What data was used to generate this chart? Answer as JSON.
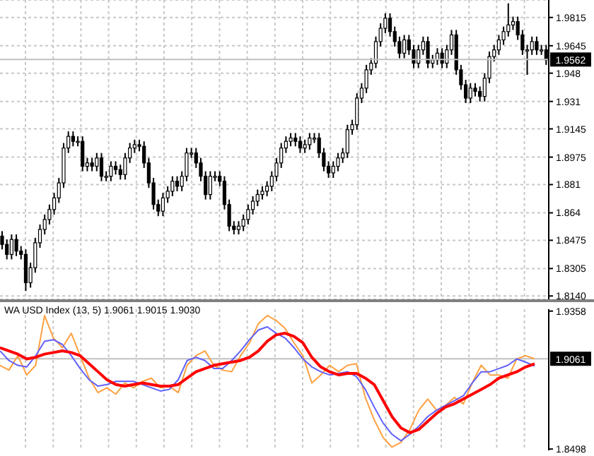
{
  "chart_data": [
    {
      "type": "candlestick",
      "color": "#000000",
      "categories": [
        null,
        null,
        null,
        null,
        null,
        null,
        null,
        null,
        null,
        null,
        null,
        null,
        null,
        null,
        null,
        null,
        null,
        null,
        null,
        null,
        null,
        null,
        null,
        null,
        null,
        null,
        null,
        null,
        null,
        null,
        null,
        null,
        null,
        null,
        null,
        null,
        null,
        null,
        null,
        null,
        null,
        null,
        null,
        null,
        null,
        null,
        null,
        null,
        null,
        null,
        null,
        null,
        null,
        null,
        null,
        null,
        null,
        null,
        null,
        null,
        null,
        null,
        null,
        null,
        null,
        null,
        null,
        null,
        null,
        null,
        null,
        null,
        null,
        null,
        null,
        null,
        null,
        null,
        null,
        null,
        null,
        null,
        null,
        null,
        null,
        null,
        null,
        null,
        null,
        null,
        null,
        null,
        null,
        null,
        null,
        null,
        null,
        null,
        null,
        null,
        null,
        null,
        null,
        null,
        null,
        null,
        null,
        null,
        null,
        null,
        null,
        null,
        null,
        null,
        null,
        null
      ],
      "ohlc": [
        [
          1.85,
          1.853,
          1.842,
          1.845
        ],
        [
          1.845,
          1.848,
          1.836,
          1.839
        ],
        [
          1.839,
          1.851,
          1.836,
          1.848
        ],
        [
          1.848,
          1.851,
          1.838,
          1.841
        ],
        [
          1.841,
          1.844,
          1.836,
          1.839
        ],
        [
          1.839,
          1.842,
          1.817,
          1.822
        ],
        [
          1.822,
          1.834,
          1.819,
          1.831
        ],
        [
          1.831,
          1.849,
          1.828,
          1.846
        ],
        [
          1.846,
          1.857,
          1.843,
          1.854
        ],
        [
          1.854,
          1.863,
          1.851,
          1.86
        ],
        [
          1.86,
          1.869,
          1.857,
          1.866
        ],
        [
          1.866,
          1.876,
          1.863,
          1.873
        ],
        [
          1.873,
          1.885,
          1.87,
          1.882
        ],
        [
          1.882,
          1.906,
          1.879,
          1.903
        ],
        [
          1.903,
          1.913,
          1.9,
          1.91
        ],
        [
          1.91,
          1.913,
          1.904,
          1.907
        ],
        [
          1.907,
          1.91,
          1.904,
          1.907
        ],
        [
          1.907,
          1.91,
          1.889,
          1.892
        ],
        [
          1.892,
          1.897,
          1.889,
          1.894
        ],
        [
          1.894,
          1.897,
          1.889,
          1.892
        ],
        [
          1.892,
          1.9,
          1.889,
          1.897
        ],
        [
          1.897,
          1.9,
          1.883,
          1.886
        ],
        [
          1.886,
          1.889,
          1.883,
          1.886
        ],
        [
          1.886,
          1.895,
          1.883,
          1.892
        ],
        [
          1.892,
          1.895,
          1.887,
          1.89
        ],
        [
          1.89,
          1.893,
          1.884,
          1.887
        ],
        [
          1.887,
          1.9,
          1.884,
          1.897
        ],
        [
          1.897,
          1.906,
          1.894,
          1.903
        ],
        [
          1.903,
          1.908,
          1.9,
          1.905
        ],
        [
          1.905,
          1.908,
          1.901,
          1.904
        ],
        [
          1.904,
          1.907,
          1.891,
          1.894
        ],
        [
          1.894,
          1.897,
          1.879,
          1.882
        ],
        [
          1.882,
          1.885,
          1.866,
          1.869
        ],
        [
          1.869,
          1.872,
          1.862,
          1.865
        ],
        [
          1.865,
          1.876,
          1.862,
          1.873
        ],
        [
          1.873,
          1.88,
          1.87,
          1.877
        ],
        [
          1.877,
          1.886,
          1.874,
          1.883
        ],
        [
          1.883,
          1.886,
          1.877,
          1.88
        ],
        [
          1.88,
          1.889,
          1.877,
          1.886
        ],
        [
          1.886,
          1.903,
          1.883,
          1.9
        ],
        [
          1.9,
          1.903,
          1.897,
          1.9
        ],
        [
          1.9,
          1.903,
          1.891,
          1.894
        ],
        [
          1.894,
          1.897,
          1.883,
          1.886
        ],
        [
          1.886,
          1.889,
          1.872,
          1.875
        ],
        [
          1.875,
          1.889,
          1.872,
          1.886
        ],
        [
          1.886,
          1.889,
          1.883,
          1.886
        ],
        [
          1.886,
          1.889,
          1.88,
          1.883
        ],
        [
          1.883,
          1.886,
          1.866,
          1.869
        ],
        [
          1.869,
          1.872,
          1.853,
          1.856
        ],
        [
          1.856,
          1.859,
          1.851,
          1.854
        ],
        [
          1.854,
          1.859,
          1.851,
          1.856
        ],
        [
          1.856,
          1.863,
          1.853,
          1.86
        ],
        [
          1.86,
          1.869,
          1.857,
          1.866
        ],
        [
          1.866,
          1.874,
          1.863,
          1.871
        ],
        [
          1.871,
          1.878,
          1.868,
          1.875
        ],
        [
          1.875,
          1.88,
          1.872,
          1.877
        ],
        [
          1.877,
          1.883,
          1.874,
          1.88
        ],
        [
          1.88,
          1.889,
          1.877,
          1.886
        ],
        [
          1.886,
          1.897,
          1.883,
          1.894
        ],
        [
          1.894,
          1.906,
          1.891,
          1.903
        ],
        [
          1.903,
          1.91,
          1.9,
          1.907
        ],
        [
          1.907,
          1.912,
          1.904,
          1.909
        ],
        [
          1.909,
          1.912,
          1.904,
          1.907
        ],
        [
          1.907,
          1.91,
          1.9,
          1.903
        ],
        [
          1.903,
          1.908,
          1.9,
          1.905
        ],
        [
          1.905,
          1.912,
          1.902,
          1.909
        ],
        [
          1.909,
          1.912,
          1.906,
          1.909
        ],
        [
          1.909,
          1.912,
          1.897,
          1.9
        ],
        [
          1.9,
          1.903,
          1.889,
          1.892
        ],
        [
          1.892,
          1.895,
          1.885,
          1.888
        ],
        [
          1.888,
          1.895,
          1.885,
          1.892
        ],
        [
          1.892,
          1.9,
          1.889,
          1.897
        ],
        [
          1.897,
          1.903,
          1.894,
          1.9
        ],
        [
          1.9,
          1.917,
          1.897,
          1.914
        ],
        [
          1.914,
          1.92,
          1.911,
          1.917
        ],
        [
          1.917,
          1.936,
          1.914,
          1.933
        ],
        [
          1.933,
          1.942,
          1.93,
          1.939
        ],
        [
          1.939,
          1.953,
          1.936,
          1.95
        ],
        [
          1.95,
          1.957,
          1.947,
          1.954
        ],
        [
          1.954,
          1.97,
          1.951,
          1.967
        ],
        [
          1.967,
          1.978,
          1.964,
          1.975
        ],
        [
          1.975,
          1.984,
          1.972,
          1.981
        ],
        [
          1.981,
          1.984,
          1.97,
          1.973
        ],
        [
          1.973,
          1.976,
          1.964,
          1.967
        ],
        [
          1.967,
          1.97,
          1.957,
          1.96
        ],
        [
          1.96,
          1.971,
          1.957,
          1.968
        ],
        [
          1.968,
          1.971,
          1.959,
          1.962
        ],
        [
          1.962,
          1.965,
          1.951,
          1.954
        ],
        [
          1.954,
          1.965,
          1.951,
          1.962
        ],
        [
          1.962,
          1.97,
          1.959,
          1.967
        ],
        [
          1.967,
          1.97,
          1.951,
          1.954
        ],
        [
          1.954,
          1.959,
          1.951,
          1.956
        ],
        [
          1.956,
          1.963,
          1.953,
          1.96
        ],
        [
          1.96,
          1.963,
          1.951,
          1.954
        ],
        [
          1.954,
          1.965,
          1.951,
          1.962
        ],
        [
          1.962,
          1.974,
          1.959,
          1.971
        ],
        [
          1.971,
          1.974,
          1.947,
          1.95
        ],
        [
          1.95,
          1.953,
          1.938,
          1.941
        ],
        [
          1.941,
          1.944,
          1.93,
          1.933
        ],
        [
          1.933,
          1.942,
          1.93,
          1.939
        ],
        [
          1.939,
          1.942,
          1.934,
          1.937
        ],
        [
          1.937,
          1.94,
          1.931,
          1.934
        ],
        [
          1.934,
          1.948,
          1.931,
          1.945
        ],
        [
          1.945,
          1.961,
          1.942,
          1.958
        ],
        [
          1.958,
          1.965,
          1.955,
          1.962
        ],
        [
          1.962,
          1.971,
          1.959,
          1.968
        ],
        [
          1.968,
          1.976,
          1.965,
          1.973
        ],
        [
          1.973,
          1.99,
          1.97,
          1.977
        ],
        [
          1.977,
          1.982,
          1.974,
          1.979
        ],
        [
          1.979,
          1.982,
          1.968,
          1.971
        ],
        [
          1.971,
          1.974,
          1.959,
          1.962
        ],
        [
          1.962,
          1.965,
          1.947,
          1.962
        ],
        [
          1.962,
          1.97,
          1.959,
          1.967
        ],
        [
          1.967,
          1.97,
          1.959,
          1.962
        ],
        [
          1.962,
          1.965,
          1.959,
          1.962
        ],
        [
          1.962,
          1.965,
          1.953,
          1.956
        ]
      ],
      "ylim": [
        1.812,
        1.992
      ],
      "yticks": [
        {
          "value": 1.814,
          "label": "1.8140"
        },
        1.8305,
        1.8475,
        1.864,
        1.881,
        1.8975,
        1.9145,
        1.931,
        1.948,
        1.9645,
        1.9815
      ],
      "ref_lines": [
        {
          "axis": "y",
          "value": 1.9562,
          "label": "1.9562",
          "color": "#c0c0c0"
        }
      ],
      "grid": true,
      "tick_labels": "y"
    },
    {
      "type": "line",
      "title": "WA USD Index (13, 5) 1.9061 1.9015 1.9030",
      "categories": [
        null,
        null,
        null,
        null,
        null,
        null,
        null,
        null,
        null,
        null,
        null,
        null,
        null,
        null,
        null,
        null,
        null,
        null,
        null,
        null,
        null,
        null,
        null,
        null,
        null,
        null,
        null,
        null,
        null,
        null,
        null,
        null,
        null,
        null,
        null,
        null,
        null,
        null,
        null,
        null,
        null,
        null,
        null,
        null,
        null,
        null,
        null,
        null,
        null,
        null,
        null,
        null,
        null,
        null,
        null,
        null,
        null,
        null,
        null,
        null,
        null
      ],
      "ylim": [
        1.849,
        1.937
      ],
      "yticks": [
        1.9358,
        1.8498
      ],
      "ref_lines": [
        {
          "axis": "y",
          "value": 1.9061,
          "label": "1.9061",
          "color": "#c0c0c0"
        }
      ],
      "marker": "none",
      "tick_labels": "y",
      "grid": "x",
      "series": [
        {
          "color": "#ffa040",
          "values": [
            1.902,
            1.899,
            1.908,
            1.896,
            1.902,
            1.933,
            1.919,
            1.913,
            1.922,
            1.908,
            1.894,
            1.885,
            1.888,
            1.884,
            1.891,
            1.888,
            1.892,
            1.894,
            1.888,
            1.889,
            1.885,
            1.902,
            1.908,
            1.911,
            1.902,
            1.899,
            1.898,
            1.908,
            1.916,
            1.928,
            1.933,
            1.93,
            1.925,
            1.916,
            1.908,
            1.891,
            1.896,
            1.902,
            1.898,
            1.902,
            1.903,
            1.882,
            1.868,
            1.857,
            1.851,
            1.854,
            1.862,
            1.874,
            1.881,
            1.874,
            1.877,
            1.882,
            1.878,
            1.891,
            1.902,
            1.896,
            1.896,
            1.894,
            1.906,
            1.908,
            1.9061
          ]
        },
        {
          "color": "#6060ff",
          "values": [
            1.911,
            1.905,
            1.902,
            1.901,
            1.908,
            1.917,
            1.918,
            1.915,
            1.908,
            1.9,
            1.893,
            1.889,
            1.89,
            1.892,
            1.892,
            1.892,
            1.89,
            1.888,
            1.886,
            1.887,
            1.893,
            1.905,
            1.907,
            1.905,
            1.9,
            1.9,
            1.905,
            1.911,
            1.918,
            1.924,
            1.926,
            1.922,
            1.919,
            1.913,
            1.906,
            1.901,
            1.898,
            1.896,
            1.897,
            1.898,
            1.895,
            1.887,
            1.876,
            1.866,
            1.859,
            1.855,
            1.859,
            1.864,
            1.87,
            1.874,
            1.877,
            1.88,
            1.883,
            1.891,
            1.898,
            1.898,
            1.9,
            1.902,
            1.906,
            1.904,
            1.9015
          ]
        },
        {
          "color": "#ff0000",
          "values": [
            1.913,
            1.911,
            1.909,
            1.906,
            1.907,
            1.909,
            1.91,
            1.911,
            1.91,
            1.908,
            1.903,
            1.898,
            1.893,
            1.89,
            1.889,
            1.89,
            1.891,
            1.89,
            1.889,
            1.889,
            1.89,
            1.894,
            1.898,
            1.9,
            1.902,
            1.903,
            1.904,
            1.905,
            1.907,
            1.911,
            1.917,
            1.921,
            1.922,
            1.92,
            1.916,
            1.907,
            1.901,
            1.898,
            1.896,
            1.897,
            1.897,
            1.894,
            1.89,
            1.88,
            1.87,
            1.863,
            1.86,
            1.862,
            1.867,
            1.872,
            1.876,
            1.878,
            1.881,
            1.884,
            1.887,
            1.89,
            1.894,
            1.896,
            1.898,
            1.901,
            1.903
          ]
        }
      ]
    }
  ]
}
